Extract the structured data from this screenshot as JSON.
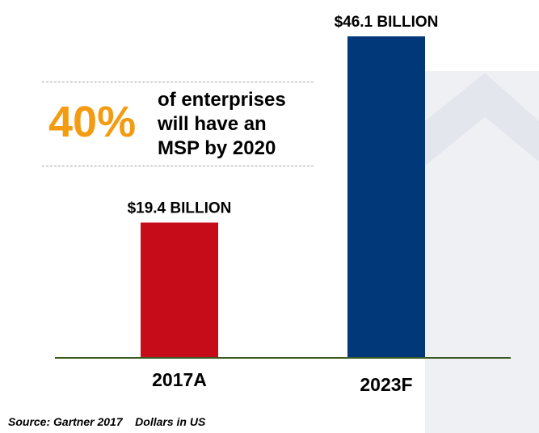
{
  "chart_data": {
    "type": "bar",
    "categories": [
      "2017A",
      "2023F"
    ],
    "values": [
      19.4,
      46.1
    ],
    "data_labels": [
      "$19.4 BILLION",
      "$46.1 BILLION"
    ],
    "unit": "billion USD",
    "title": "",
    "xlabel": "",
    "ylabel": "",
    "ylim": [
      0,
      50
    ],
    "grid": false,
    "colors": [
      "#c60c19",
      "#00387a"
    ]
  },
  "callout": {
    "stat": "40%",
    "lines": [
      "of enterprises",
      "will have an",
      "MSP by 2020"
    ]
  },
  "source": "Source: Gartner 2017    Dollars in US",
  "colors": {
    "stat": "#f39c12",
    "baseline": "#3a5a24",
    "background_shape": "#eef0f4"
  }
}
